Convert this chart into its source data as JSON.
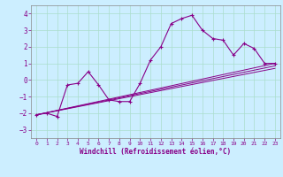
{
  "title": "",
  "xlabel": "Windchill (Refroidissement éolien,°C)",
  "ylabel": "",
  "background_color": "#cceeff",
  "grid_color": "#aaddcc",
  "line_color": "#880088",
  "spine_color": "#888888",
  "xlim": [
    -0.5,
    23.5
  ],
  "ylim": [
    -3.5,
    4.5
  ],
  "yticks": [
    -3,
    -2,
    -1,
    0,
    1,
    2,
    3,
    4
  ],
  "xticks": [
    0,
    1,
    2,
    3,
    4,
    5,
    6,
    7,
    8,
    9,
    10,
    11,
    12,
    13,
    14,
    15,
    16,
    17,
    18,
    19,
    20,
    21,
    22,
    23
  ],
  "series": [
    {
      "x": [
        0,
        1,
        2,
        3,
        4,
        5,
        6,
        7,
        8,
        9,
        10,
        11,
        12,
        13,
        14,
        15,
        16,
        17,
        18,
        19,
        20,
        21,
        22,
        23
      ],
      "y": [
        -2.1,
        -2.0,
        -2.2,
        -0.3,
        -0.2,
        0.5,
        -0.3,
        -1.2,
        -1.3,
        -1.3,
        -0.2,
        1.2,
        2.0,
        3.4,
        3.7,
        3.9,
        3.0,
        2.5,
        2.4,
        1.5,
        2.2,
        1.9,
        1.0,
        1.0
      ],
      "marker": true
    },
    {
      "x": [
        0,
        23
      ],
      "y": [
        -2.1,
        1.0
      ],
      "marker": false
    },
    {
      "x": [
        0,
        23
      ],
      "y": [
        -2.1,
        0.85
      ],
      "marker": false
    },
    {
      "x": [
        0,
        23
      ],
      "y": [
        -2.1,
        0.7
      ],
      "marker": false
    }
  ]
}
